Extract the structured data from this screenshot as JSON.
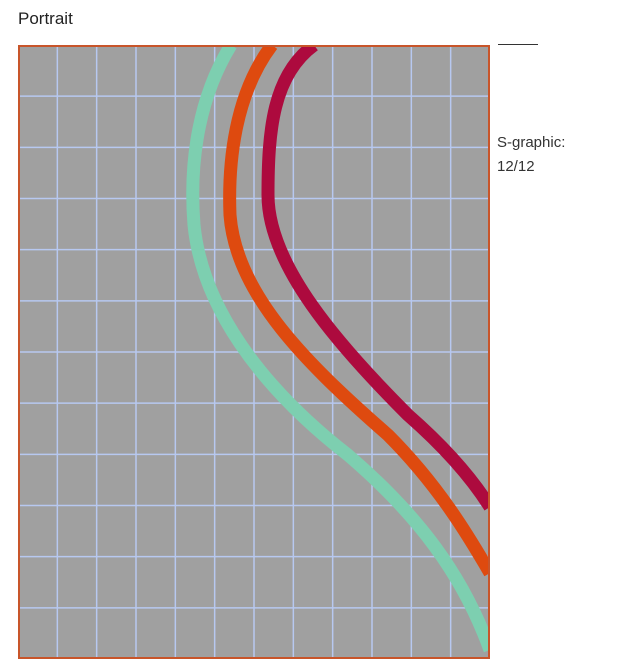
{
  "title": "Portrait",
  "caption": {
    "line1": "S-graphic:",
    "line2": "12/12"
  },
  "colors": {
    "background": "#a0a0a0",
    "border": "#c8552a",
    "grid": "#b7c8f0",
    "curve_teal": "#7dcfb0",
    "curve_orange": "#de4a0f",
    "curve_crimson": "#ad0a3e",
    "rule": "#333333"
  },
  "grid": {
    "columns": 12,
    "rows": 12
  },
  "curves": [
    {
      "name": "teal",
      "color": "#7dcfb0"
    },
    {
      "name": "orange",
      "color": "#de4a0f"
    },
    {
      "name": "crimson",
      "color": "#ad0a3e"
    }
  ]
}
